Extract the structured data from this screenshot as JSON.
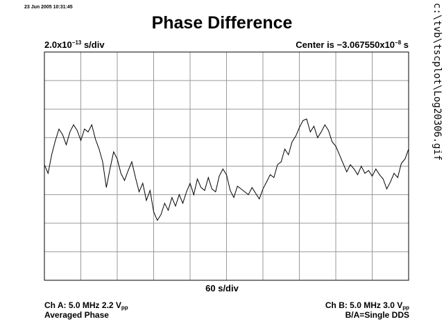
{
  "timestamp": "23 Jun 2005 10:31:45",
  "side_path": "c:\\tvb\\tscplot\\Log20306.gif",
  "chart_data": {
    "type": "line",
    "title": "Phase Difference",
    "y_scale": {
      "mantissa": "2.0x10",
      "exponent": "−13",
      "unit": " s/div"
    },
    "center": {
      "prefix": "Center is −3.067550x10",
      "exponent": "−8",
      "unit": " s"
    },
    "x_scale": "60 s/div",
    "divisions": {
      "x": 10,
      "y": 8
    },
    "grid": true,
    "x_range": [
      0,
      600
    ],
    "y_range": [
      -8e-13,
      8e-13
    ],
    "series": [
      {
        "x": [
          0,
          6,
          12,
          18,
          24,
          30,
          36,
          42,
          48,
          54,
          60,
          66,
          72,
          78,
          84,
          90,
          96,
          102,
          108,
          114,
          120,
          126,
          132,
          138,
          144,
          150,
          156,
          162,
          168,
          174,
          180,
          186,
          192,
          198,
          204,
          210,
          216,
          222,
          228,
          234,
          240,
          246,
          252,
          258,
          264,
          270,
          276,
          282,
          288,
          294,
          300,
          306,
          312,
          318,
          324,
          330,
          336,
          342,
          348,
          354,
          360,
          366,
          372,
          378,
          384,
          390,
          396,
          402,
          408,
          414,
          420,
          426,
          432,
          438,
          444,
          450,
          456,
          462,
          468,
          474,
          480,
          486,
          492,
          498,
          504,
          510,
          516,
          522,
          528,
          534,
          540,
          546,
          552,
          558,
          564,
          570,
          576,
          582,
          588,
          594,
          600
        ],
        "values": [
          1e-14,
          -5e-14,
          8e-14,
          1.8e-13,
          2.6e-13,
          2.2e-13,
          1.5e-13,
          2.4e-13,
          2.9e-13,
          2.5e-13,
          1.8e-13,
          2.6e-13,
          2.4e-13,
          2.9e-13,
          1.9e-13,
          1.2e-13,
          3e-14,
          -1.5e-13,
          -2e-14,
          1e-13,
          5e-14,
          -5e-14,
          -1e-13,
          -3e-14,
          3e-14,
          -8e-14,
          -1.8e-13,
          -1.2e-13,
          -2.4e-13,
          -1.7e-13,
          -3.2e-13,
          -3.8e-13,
          -3.4e-13,
          -2.6e-13,
          -3.1e-13,
          -2.2e-13,
          -2.8e-13,
          -2e-13,
          -2.6e-13,
          -1.8e-13,
          -1.2e-13,
          -2e-13,
          -9e-14,
          -1.5e-13,
          -1.7e-13,
          -8e-14,
          -1.6e-13,
          -1.8e-13,
          -7e-14,
          -2e-14,
          -6e-14,
          -1.7e-13,
          -2.2e-13,
          -1.4e-13,
          -1.6e-13,
          -1.8e-13,
          -2e-13,
          -1.5e-13,
          -1.9e-13,
          -2.3e-13,
          -1.6e-13,
          -1.1e-13,
          -6e-14,
          -8e-14,
          1e-14,
          3e-14,
          1.2e-13,
          8e-14,
          1.7e-13,
          2.1e-13,
          2.7e-13,
          3.2e-13,
          3.3e-13,
          2.4e-13,
          2.8e-13,
          2e-13,
          2.4e-13,
          2.9e-13,
          2.5e-13,
          1.7e-13,
          1.4e-13,
          8e-14,
          2e-14,
          -4e-14,
          1e-14,
          -2e-14,
          -6e-14,
          0.0,
          -5e-14,
          -3e-14,
          -7e-14,
          -2e-14,
          -6e-14,
          -9e-14,
          -1.6e-13,
          -1.1e-13,
          -5e-14,
          -8e-14,
          2e-14,
          5e-14,
          1.2e-13
        ]
      }
    ]
  },
  "footer": {
    "ch_a": {
      "label": "Ch A: 5.0 MHz 2.2 V",
      "sub": "pp"
    },
    "ch_a_mode": "Averaged Phase",
    "ch_b": {
      "label": "Ch B: 5.0 MHz 3.0 V",
      "sub": "pp"
    },
    "ratio": "B/A=Single DDS"
  }
}
